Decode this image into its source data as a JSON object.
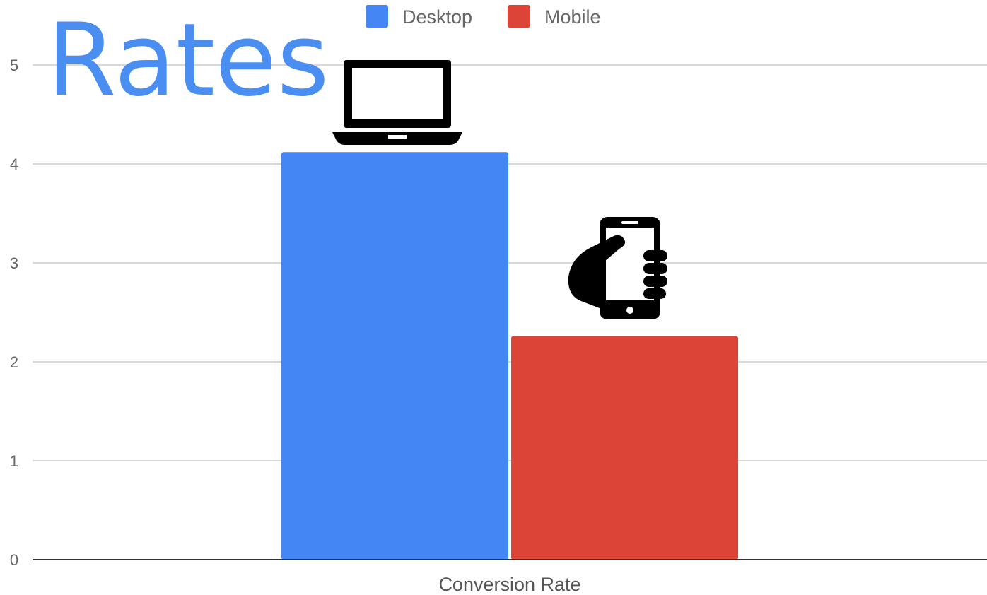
{
  "overlay_title": "Rates",
  "colors": {
    "desktop": "#4386f4",
    "mobile": "#db4437",
    "title": "#4a8ef2",
    "grid": "#d9d9d9",
    "axis": "#333333"
  },
  "icons": {
    "desktop": "laptop-icon",
    "mobile": "phone-in-hand-icon"
  },
  "chart_data": {
    "type": "bar",
    "categories": [
      "Conversion Rate"
    ],
    "series": [
      {
        "name": "Desktop",
        "values": [
          4.12
        ],
        "color": "#4386f4"
      },
      {
        "name": "Mobile",
        "values": [
          2.26
        ],
        "color": "#db4437"
      }
    ],
    "ylim": [
      0,
      5
    ],
    "yticks": [
      "0",
      "1",
      "2",
      "3",
      "4",
      "5"
    ],
    "grid": true,
    "legend": "top-center"
  }
}
